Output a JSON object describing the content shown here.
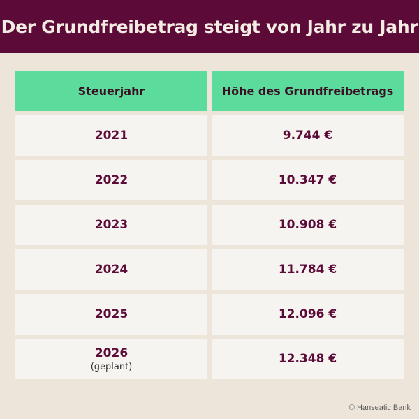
{
  "title": "Der Grundfreibetrag steigt von Jahr zu Jahr",
  "chart_data": {
    "type": "table",
    "columns": [
      "Steuerjahr",
      "Höhe des Grundfreibetrags"
    ],
    "rows": [
      {
        "year": "2021",
        "note": "",
        "amount": "9.744 €",
        "value": 9744
      },
      {
        "year": "2022",
        "note": "",
        "amount": "10.347 €",
        "value": 10347
      },
      {
        "year": "2023",
        "note": "",
        "amount": "10.908 €",
        "value": 10908
      },
      {
        "year": "2024",
        "note": "",
        "amount": "11.784 €",
        "value": 11784
      },
      {
        "year": "2025",
        "note": "",
        "amount": "12.096 €",
        "value": 12096
      },
      {
        "year": "2026",
        "note": "(geplant)",
        "amount": "12.348 €",
        "value": 12348
      }
    ]
  },
  "credit": "© Hanseatic Bank",
  "colors": {
    "header_bg": "#5c0a37",
    "table_header_bg": "#5cdc9c",
    "page_bg": "#ede5da",
    "cell_bg": "#f6f4f1",
    "text": "#5c0a37"
  }
}
